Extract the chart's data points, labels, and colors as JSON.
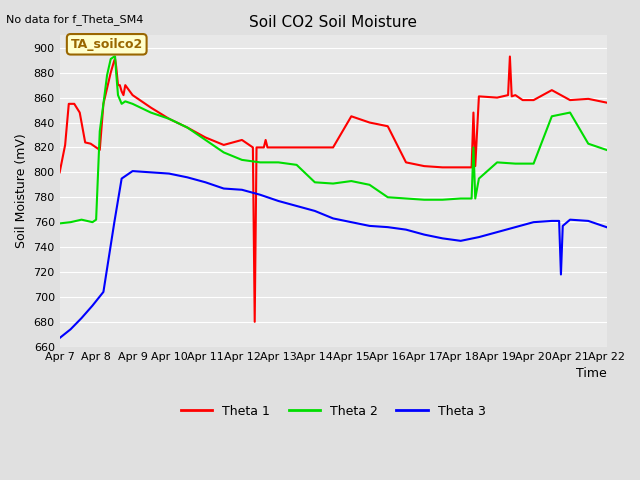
{
  "title": "Soil CO2 Soil Moisture",
  "no_data_text": "No data for f_Theta_SM4",
  "ylabel": "Soil Moisture (mV)",
  "xlabel": "Time",
  "annotation": "TA_soilco2",
  "ylim": [
    660,
    910
  ],
  "yticks": [
    660,
    680,
    700,
    720,
    740,
    760,
    780,
    800,
    820,
    840,
    860,
    880,
    900
  ],
  "x_tick_labels": [
    "Apr 7",
    "Apr 8",
    "Apr 9",
    "Apr 10",
    "Apr 11",
    "Apr 12",
    "Apr 13",
    "Apr 14",
    "Apr 15",
    "Apr 16",
    "Apr 17",
    "Apr 18",
    "Apr 19",
    "Apr 20",
    "Apr 21",
    "Apr 22"
  ],
  "legend_labels": [
    "Theta 1",
    "Theta 2",
    "Theta 3"
  ],
  "line_colors": [
    "#ff0000",
    "#00dd00",
    "#0000ff"
  ],
  "background_color": "#e0e0e0",
  "plot_bg_color": "#e8e8e8",
  "grid_color": "#ffffff",
  "annotation_bg": "#ffffcc",
  "annotation_fg": "#996600",
  "theta1_x": [
    0.0,
    0.15,
    0.25,
    0.4,
    0.55,
    0.7,
    0.85,
    1.0,
    1.1,
    1.2,
    1.4,
    1.5,
    1.52,
    1.55,
    1.6,
    1.65,
    1.7,
    1.75,
    1.8,
    2.0,
    2.2,
    2.5,
    3.0,
    3.5,
    4.0,
    4.5,
    5.0,
    5.3,
    5.35,
    5.4,
    5.6,
    5.65,
    5.7,
    6.0,
    6.5,
    7.0,
    7.5,
    8.0,
    8.5,
    9.0,
    9.5,
    10.0,
    10.5,
    11.0,
    11.3,
    11.35,
    11.4,
    11.5,
    12.0,
    12.3,
    12.35,
    12.4,
    12.5,
    12.7,
    13.0,
    13.5,
    14.0,
    14.5,
    15.0
  ],
  "theta1_y": [
    800,
    822,
    855,
    855,
    848,
    824,
    823,
    820,
    818,
    855,
    880,
    890,
    891,
    885,
    870,
    870,
    865,
    862,
    870,
    862,
    858,
    852,
    843,
    836,
    828,
    822,
    826,
    820,
    680,
    820,
    820,
    826,
    820,
    820,
    820,
    820,
    820,
    845,
    840,
    837,
    808,
    805,
    804,
    804,
    804,
    848,
    805,
    861,
    860,
    862,
    893,
    861,
    862,
    858,
    858,
    866,
    858,
    859,
    856
  ],
  "theta2_x": [
    0.0,
    0.3,
    0.6,
    0.9,
    1.0,
    1.1,
    1.2,
    1.3,
    1.4,
    1.5,
    1.52,
    1.55,
    1.6,
    1.7,
    1.8,
    2.0,
    2.5,
    3.0,
    3.5,
    4.0,
    4.5,
    5.0,
    5.5,
    6.0,
    6.5,
    7.0,
    7.5,
    8.0,
    8.5,
    9.0,
    9.5,
    10.0,
    10.5,
    11.0,
    11.3,
    11.35,
    11.4,
    11.5,
    12.0,
    12.5,
    13.0,
    13.5,
    14.0,
    14.5,
    15.0
  ],
  "theta2_y": [
    759,
    760,
    762,
    760,
    762,
    833,
    855,
    878,
    891,
    893,
    893,
    880,
    862,
    855,
    857,
    855,
    848,
    843,
    836,
    826,
    816,
    810,
    808,
    808,
    806,
    792,
    791,
    793,
    790,
    780,
    779,
    778,
    778,
    779,
    779,
    820,
    779,
    795,
    808,
    807,
    807,
    845,
    848,
    823,
    818
  ],
  "theta3_x": [
    0.0,
    0.3,
    0.6,
    0.9,
    1.2,
    1.5,
    1.7,
    2.0,
    2.5,
    3.0,
    3.5,
    4.0,
    4.5,
    5.0,
    5.5,
    6.0,
    6.5,
    7.0,
    7.5,
    8.0,
    8.5,
    9.0,
    9.5,
    10.0,
    10.5,
    11.0,
    11.5,
    12.0,
    12.5,
    13.0,
    13.5,
    13.7,
    13.75,
    13.8,
    14.0,
    14.5,
    15.0
  ],
  "theta3_y": [
    667,
    674,
    683,
    693,
    704,
    760,
    795,
    801,
    800,
    799,
    796,
    792,
    787,
    786,
    782,
    777,
    773,
    769,
    763,
    760,
    757,
    756,
    754,
    750,
    747,
    745,
    748,
    752,
    756,
    760,
    761,
    761,
    718,
    757,
    762,
    761,
    756
  ]
}
